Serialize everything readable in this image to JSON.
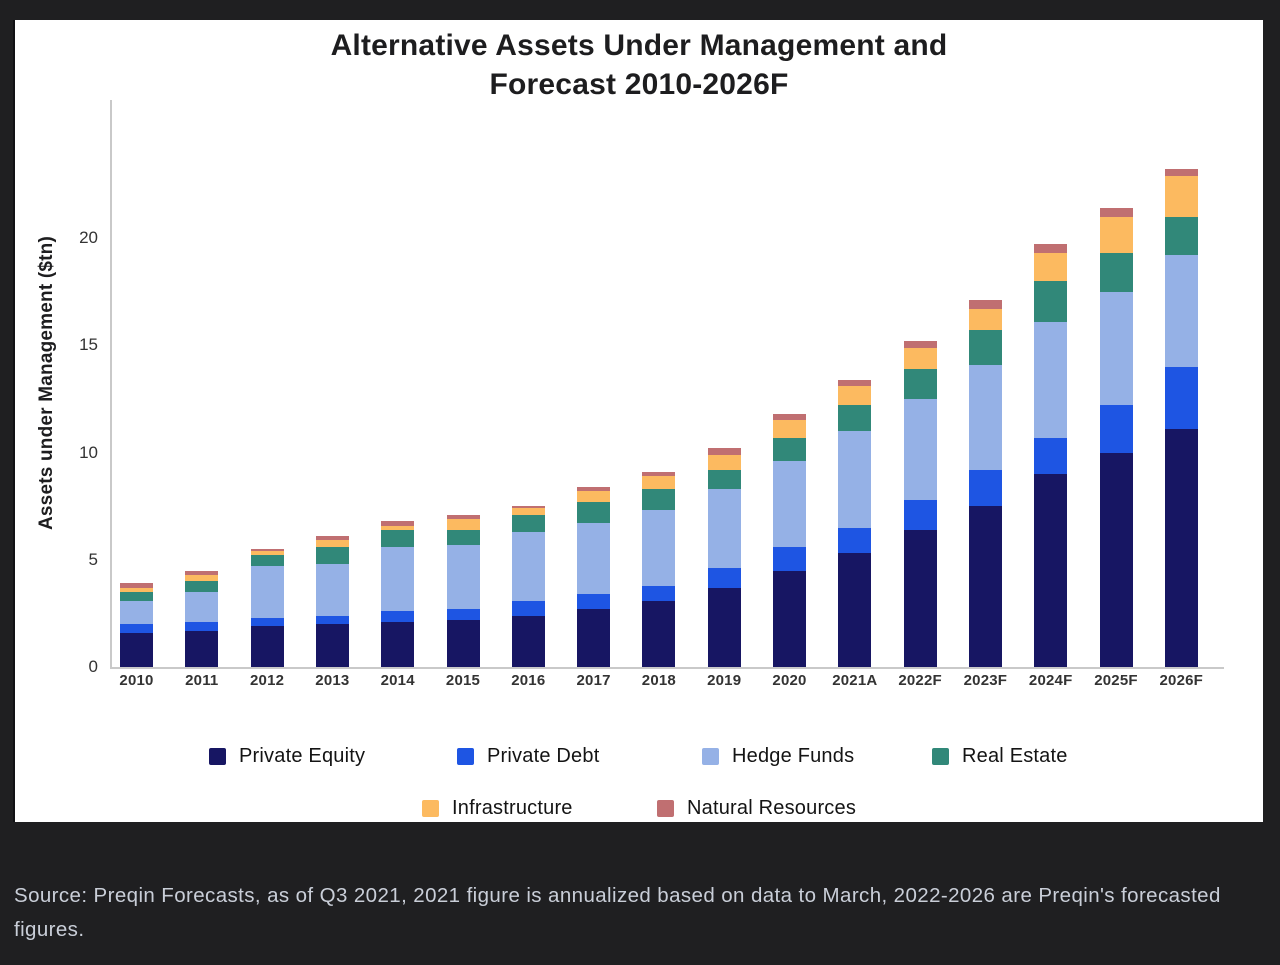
{
  "chart_data": {
    "type": "bar",
    "stacked": true,
    "title": "Alternative Assets Under Management and Forecast 2010-2026F",
    "title_lines": [
      "Alternative Assets Under Management and",
      "Forecast 2010-2026F"
    ],
    "xlabel": "",
    "ylabel": "Assets under Management ($tn)",
    "ylim": [
      0,
      26.4
    ],
    "yticks": [
      0,
      5,
      10,
      15,
      20
    ],
    "grid": false,
    "legend_position": "bottom",
    "categories": [
      "2010",
      "2011",
      "2012",
      "2013",
      "2014",
      "2015",
      "2016",
      "2017",
      "2018",
      "2019",
      "2020",
      "2021A",
      "2022F",
      "2023F",
      "2024F",
      "2025F",
      "2026F"
    ],
    "series": [
      {
        "name": "Private Equity",
        "color": "#171663",
        "values": [
          1.6,
          1.7,
          1.9,
          2.0,
          2.1,
          2.2,
          2.4,
          2.7,
          3.1,
          3.7,
          4.5,
          5.3,
          6.4,
          7.5,
          9.0,
          10.0,
          11.1
        ]
      },
      {
        "name": "Private Debt",
        "color": "#1e55e3",
        "values": [
          0.4,
          0.4,
          0.4,
          0.4,
          0.5,
          0.5,
          0.7,
          0.7,
          0.7,
          0.9,
          1.1,
          1.2,
          1.4,
          1.7,
          1.7,
          2.2,
          2.9
        ]
      },
      {
        "name": "Hedge Funds",
        "color": "#95b1e6",
        "values": [
          1.1,
          1.4,
          2.4,
          2.4,
          3.0,
          3.0,
          3.2,
          3.3,
          3.5,
          3.7,
          4.0,
          4.5,
          4.7,
          4.9,
          5.4,
          5.3,
          5.2
        ]
      },
      {
        "name": "Real Estate",
        "color": "#318879",
        "values": [
          0.4,
          0.5,
          0.5,
          0.8,
          0.8,
          0.7,
          0.8,
          1.0,
          1.0,
          0.9,
          1.1,
          1.2,
          1.4,
          1.6,
          1.9,
          1.8,
          1.8
        ]
      },
      {
        "name": "Infrastructure",
        "color": "#fcba60",
        "values": [
          0.2,
          0.3,
          0.2,
          0.3,
          0.2,
          0.5,
          0.3,
          0.5,
          0.6,
          0.7,
          0.8,
          0.9,
          1.0,
          1.0,
          1.3,
          1.7,
          1.9
        ]
      },
      {
        "name": "Natural Resources",
        "color": "#c06f71",
        "values": [
          0.2,
          0.2,
          0.1,
          0.2,
          0.2,
          0.2,
          0.1,
          0.2,
          0.2,
          0.3,
          0.3,
          0.3,
          0.3,
          0.4,
          0.4,
          0.4,
          0.3
        ]
      }
    ]
  },
  "source_note": "Source: Preqin Forecasts, as of Q3 2021, 2021 figure is annualized based on data to March, 2022-2026 are Preqin's forecasted figures.",
  "colors": {
    "page_background": "#1f1f21",
    "card_background": "#ffffff",
    "axis_line": "#c9c9c9",
    "title_text": "#1d1d1f",
    "tick_text": "#333333",
    "source_text": "#c9ced8"
  }
}
